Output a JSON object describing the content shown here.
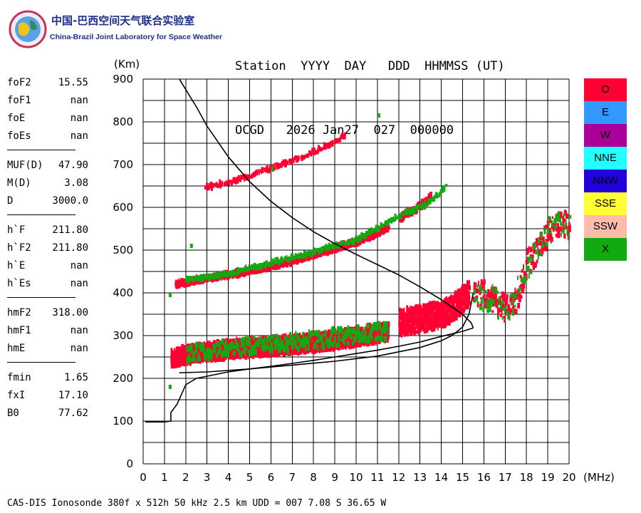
{
  "logo": {
    "title_cn": "中国-巴西空间天气联合实验室",
    "title_en": "China-Brazil Joint Laboratory for Space Weather"
  },
  "header": {
    "labels": "Station  YYYY  DAY   DDD  HHMMSS (UT)",
    "values": "OCGD   2026 Jan27  027  000000"
  },
  "parameters": [
    {
      "name": "foF2",
      "value": "15.55"
    },
    {
      "name": "foF1",
      "value": "nan"
    },
    {
      "name": "foE",
      "value": "nan"
    },
    {
      "name": "foEs",
      "value": "nan"
    },
    {
      "name": "MUF(D)",
      "value": "47.90"
    },
    {
      "name": "M(D)",
      "value": "3.08"
    },
    {
      "name": "D",
      "value": "3000.0"
    },
    {
      "name": "h`F",
      "value": "211.80"
    },
    {
      "name": "h`F2",
      "value": "211.80"
    },
    {
      "name": "h`E",
      "value": "nan"
    },
    {
      "name": "h`Es",
      "value": "nan"
    },
    {
      "name": "hmF2",
      "value": "318.00"
    },
    {
      "name": "hmF1",
      "value": "nan"
    },
    {
      "name": "hmE",
      "value": "nan"
    },
    {
      "name": "fmin",
      "value": "1.65"
    },
    {
      "name": "fxI",
      "value": "17.10"
    },
    {
      "name": "B0",
      "value": "77.62"
    }
  ],
  "legend": [
    {
      "label": "O",
      "color": "#ff0033"
    },
    {
      "label": "E",
      "color": "#3399ff"
    },
    {
      "label": "W",
      "color": "#aa0099"
    },
    {
      "label": "NNE",
      "color": "#22ffff"
    },
    {
      "label": "NNW",
      "color": "#2200dd"
    },
    {
      "label": "SSE",
      "color": "#ffff33"
    },
    {
      "label": "SSW",
      "color": "#ffbbaa"
    },
    {
      "label": "X",
      "color": "#11aa11"
    }
  ],
  "footer": "CAS-DIS Ionosonde 380f x 512h 50 kHz 2.5 km UDD = 007 7.08 S 36.65 W",
  "chart_data": {
    "type": "scatter",
    "xlabel": "(MHz)",
    "ylabel": "(Km)",
    "xlim": [
      0,
      20
    ],
    "ylim": [
      0,
      900
    ],
    "x_ticks": [
      "0",
      "1",
      "2",
      "3",
      "4",
      "5",
      "6",
      "7",
      "8",
      "9",
      "10",
      "11",
      "12",
      "13",
      "14",
      "15",
      "16",
      "17",
      "18",
      "19",
      "20"
    ],
    "y_ticks": [
      "0",
      "100",
      "200",
      "300",
      "400",
      "500",
      "600",
      "700",
      "800",
      "900"
    ],
    "grid": true,
    "series": [
      {
        "name": "O",
        "color": "#ff0033",
        "traces": [
          {
            "band": 40,
            "density": 14,
            "points": [
              [
                1.3,
                245
              ],
              [
                2,
                255
              ],
              [
                3,
                262
              ],
              [
                4,
                268
              ],
              [
                5,
                272
              ],
              [
                6,
                275
              ],
              [
                7,
                279
              ],
              [
                8,
                284
              ],
              [
                9,
                290
              ],
              [
                10,
                298
              ],
              [
                11,
                305
              ],
              [
                11.5,
                310
              ]
            ]
          },
          {
            "band": 60,
            "density": 12,
            "points": [
              [
                12,
                330
              ],
              [
                12.5,
                335
              ],
              [
                13,
                340
              ],
              [
                13.5,
                345
              ],
              [
                14,
                350
              ],
              [
                14.5,
                365
              ],
              [
                15,
                385
              ],
              [
                15.3,
                400
              ]
            ]
          },
          {
            "band": 10,
            "density": 6,
            "points": [
              [
                1.5,
                420
              ],
              [
                2,
                425
              ],
              [
                3,
                435
              ],
              [
                4,
                442
              ],
              [
                5,
                452
              ],
              [
                6,
                462
              ],
              [
                7,
                475
              ],
              [
                8,
                490
              ],
              [
                9,
                505
              ],
              [
                10,
                520
              ],
              [
                11,
                540
              ],
              [
                11.5,
                555
              ]
            ]
          },
          {
            "band": 12,
            "density": 5,
            "points": [
              [
                12,
                575
              ],
              [
                12.5,
                590
              ],
              [
                13,
                605
              ],
              [
                13.5,
                625
              ]
            ]
          },
          {
            "band": 8,
            "density": 1,
            "points": [
              [
                2.9,
                645
              ],
              [
                4,
                660
              ],
              [
                5,
                675
              ],
              [
                6,
                692
              ],
              [
                7,
                710
              ],
              [
                8,
                730
              ],
              [
                8.8,
                750
              ],
              [
                9.5,
                770
              ]
            ]
          },
          {
            "band": 60,
            "density": 3,
            "points": [
              [
                15.5,
                390
              ],
              [
                16,
                400
              ],
              [
                16.5,
                380
              ],
              [
                17,
                360
              ],
              [
                17.5,
                380
              ],
              [
                18,
                470
              ],
              [
                18.5,
                500
              ],
              [
                19,
                540
              ],
              [
                19.5,
                560
              ],
              [
                20,
                560
              ]
            ]
          }
        ]
      },
      {
        "name": "X",
        "color": "#11aa11",
        "traces": [
          {
            "band": 40,
            "density": 2,
            "points": [
              [
                2,
                260
              ],
              [
                4,
                272
              ],
              [
                6,
                279
              ],
              [
                8,
                290
              ],
              [
                10,
                300
              ],
              [
                11.5,
                312
              ]
            ]
          },
          {
            "band": 8,
            "density": 1,
            "points": [
              [
                2,
                430
              ],
              [
                4,
                445
              ],
              [
                6,
                470
              ],
              [
                8,
                495
              ],
              [
                10,
                525
              ],
              [
                12,
                580
              ],
              [
                13.5,
                615
              ],
              [
                14.2,
                650
              ]
            ]
          },
          {
            "band": 60,
            "density": 1,
            "points": [
              [
                15.5,
                400
              ],
              [
                16.5,
                380
              ],
              [
                17,
                350
              ],
              [
                19,
                550
              ],
              [
                20,
                560
              ]
            ]
          },
          {
            "band": 6,
            "density": 0,
            "points": [
              [
                1.2,
                395
              ],
              [
                1.2,
                180
              ],
              [
                2.2,
                510
              ],
              [
                6,
                690
              ],
              [
                11,
                815
              ]
            ]
          }
        ]
      }
    ],
    "curves": [
      {
        "name": "true-height-profile",
        "color": "#000000",
        "points": [
          [
            0.1,
            98
          ],
          [
            1,
            98
          ],
          [
            1.3,
            100
          ],
          [
            1.3,
            120
          ],
          [
            1.6,
            140
          ],
          [
            2,
            185
          ],
          [
            2.5,
            200
          ],
          [
            3,
            205
          ],
          [
            4,
            215
          ],
          [
            5,
            222
          ],
          [
            6,
            228
          ],
          [
            7,
            235
          ],
          [
            8,
            242
          ],
          [
            9,
            250
          ],
          [
            10,
            258
          ],
          [
            11,
            266
          ],
          [
            12,
            275
          ],
          [
            13,
            285
          ],
          [
            14,
            298
          ],
          [
            15,
            310
          ],
          [
            15.5,
            318
          ]
        ]
      },
      {
        "name": "virtual-height-trace",
        "color": "#000000",
        "points": [
          [
            1.7,
            213
          ],
          [
            3,
            215
          ],
          [
            5,
            222
          ],
          [
            7,
            231
          ],
          [
            9,
            240
          ],
          [
            11,
            252
          ],
          [
            12,
            262
          ],
          [
            13,
            272
          ],
          [
            14,
            288
          ],
          [
            14.5,
            300
          ],
          [
            15,
            320
          ],
          [
            15.3,
            350
          ],
          [
            15.5,
            400
          ]
        ]
      },
      {
        "name": "muf-curve",
        "color": "#000000",
        "points": [
          [
            1.7,
            900
          ],
          [
            2.5,
            835
          ],
          [
            3,
            790
          ],
          [
            4,
            718
          ],
          [
            5,
            660
          ],
          [
            6,
            614
          ],
          [
            7,
            576
          ],
          [
            8,
            543
          ],
          [
            9,
            515
          ],
          [
            10,
            490
          ],
          [
            11,
            466
          ],
          [
            12,
            442
          ],
          [
            13,
            414
          ],
          [
            14,
            384
          ],
          [
            15,
            350
          ],
          [
            15.4,
            330
          ],
          [
            15.5,
            318
          ]
        ]
      }
    ]
  }
}
